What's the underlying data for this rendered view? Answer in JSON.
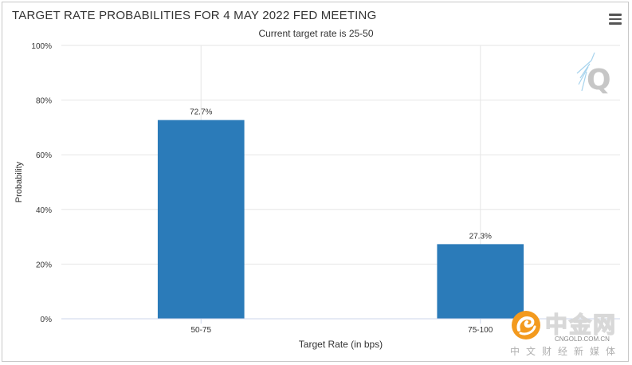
{
  "chart_data": {
    "type": "bar",
    "title": "TARGET RATE PROBABILITIES FOR 4 MAY 2022 FED MEETING",
    "subtitle": "Current target rate is 25-50",
    "xlabel": "Target Rate (in bps)",
    "ylabel": "Probability",
    "categories": [
      "50-75",
      "75-100"
    ],
    "values": [
      72.7,
      27.3
    ],
    "data_labels": [
      "72.7%",
      "27.3%"
    ],
    "ylim": [
      0,
      100
    ],
    "yticks": [
      0,
      20,
      40,
      60,
      80,
      100
    ],
    "ytick_labels": [
      "0%",
      "20%",
      "40%",
      "60%",
      "80%",
      "100%"
    ],
    "grid": true,
    "bar_color": "#2b7bb9"
  },
  "watermarks": {
    "q_mark": "Q",
    "site_name": "中金网",
    "site_domain": "CNGOLD.COM.CN",
    "site_tagline": "中文财经新媒体"
  },
  "icons": {
    "menu": "hamburger-menu-icon"
  }
}
